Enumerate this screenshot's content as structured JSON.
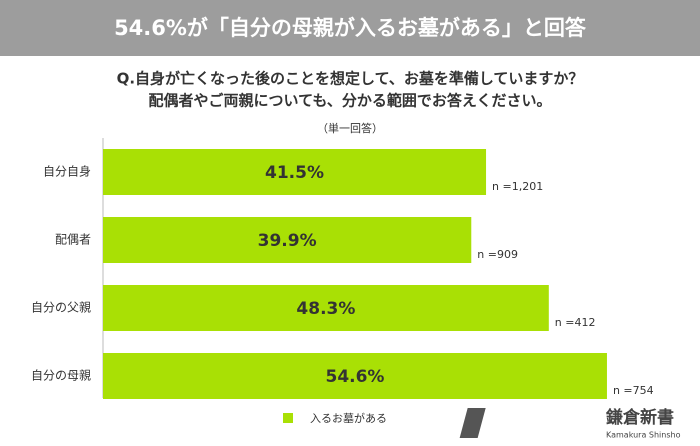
{
  "chart_data": {
    "type": "bar",
    "orientation": "horizontal",
    "title": "54.6%が「自分の母親が入るお墓がある」と回答",
    "question": [
      "Q.自身が亡くなった後のことを想定して、お墓を準備していますか？",
      "配偶者やご両親についても、分かる範囲でお答えください。"
    ],
    "subtitle": "（単一回答）",
    "categories": [
      "自分自身",
      "配偶者",
      "自分の父親",
      "自分の母親"
    ],
    "series": [
      {
        "name": "入るお墓がある",
        "color": "#a9e005",
        "values": [
          41.5,
          39.9,
          48.3,
          54.6
        ],
        "value_labels": [
          "41.5%",
          "39.9%",
          "48.3%",
          "54.6%"
        ]
      }
    ],
    "n_labels": [
      "n =1,201",
      "n =909",
      "n =412",
      "n =754"
    ],
    "logo": {
      "name": "鎌倉新書",
      "romaji": "Kamakura Shinsho"
    }
  }
}
